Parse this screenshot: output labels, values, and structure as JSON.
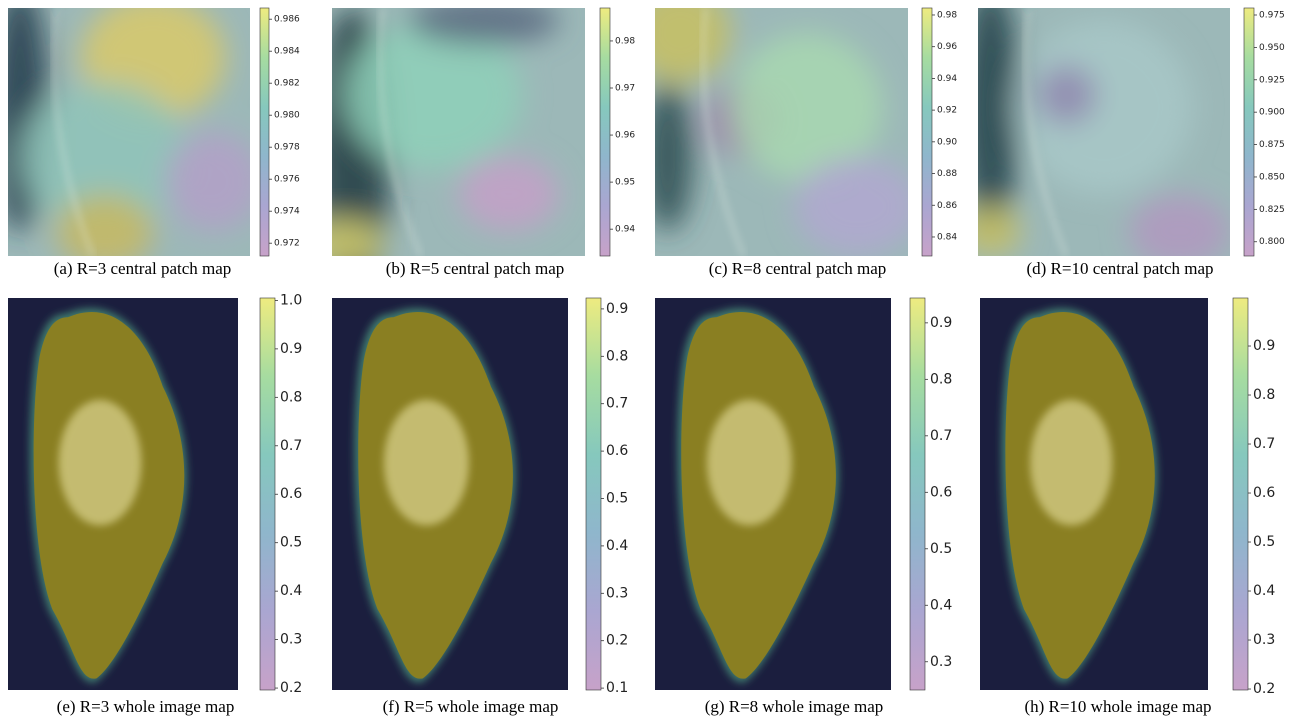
{
  "chart_data": [
    {
      "type": "heatmap",
      "caption": "(a) R=3 central patch map",
      "colormap": "viridis",
      "clim": [
        0.9712,
        0.9867
      ],
      "cticks": [
        0.972,
        0.974,
        0.976,
        0.978,
        {
          "value": 0.98,
          "label": "0.980"
        },
        0.982,
        0.984,
        0.986
      ]
    },
    {
      "type": "heatmap",
      "caption": "(b) R=5 central patch map",
      "colormap": "viridis",
      "clim": [
        0.9343,
        0.987
      ],
      "cticks": [
        0.94,
        0.95,
        0.96,
        0.97,
        0.98
      ]
    },
    {
      "type": "heatmap",
      "caption": "(c) R=8 central patch map",
      "colormap": "viridis",
      "clim": [
        0.828,
        0.9844
      ],
      "cticks": [
        0.84,
        0.86,
        0.88,
        {
          "value": 0.9,
          "label": "0.90"
        },
        0.92,
        0.94,
        0.96,
        0.98
      ]
    },
    {
      "type": "heatmap",
      "caption": "(d) R=10 central patch map",
      "colormap": "viridis",
      "clim": [
        0.789,
        0.9804
      ],
      "cticks": [
        {
          "value": 0.8,
          "label": "0.800"
        },
        0.825,
        {
          "value": 0.85,
          "label": "0.850"
        },
        0.875,
        {
          "value": 0.9,
          "label": "0.900"
        },
        0.925,
        {
          "value": 0.95,
          "label": "0.950"
        },
        0.975
      ]
    },
    {
      "type": "heatmap",
      "caption": "(e) R=3 whole image map",
      "colormap": "viridis",
      "clim": [
        0.196,
        1.005
      ],
      "cticks": [
        0.2,
        0.3,
        0.4,
        0.5,
        0.6,
        0.7,
        0.8,
        0.9,
        {
          "value": 1,
          "label": "1.0"
        }
      ]
    },
    {
      "type": "heatmap",
      "caption": "(f) R=5 whole image map",
      "colormap": "viridis",
      "clim": [
        0.096,
        0.923
      ],
      "cticks": [
        0.1,
        0.2,
        0.3,
        0.4,
        0.5,
        0.6,
        0.7,
        0.8,
        0.9
      ]
    },
    {
      "type": "heatmap",
      "caption": "(g) R=8 whole image map",
      "colormap": "viridis",
      "clim": [
        0.25,
        0.944
      ],
      "cticks": [
        0.3,
        0.4,
        0.5,
        0.6,
        0.7,
        0.8,
        0.9
      ]
    },
    {
      "type": "heatmap",
      "caption": "(h) R=10 whole image map",
      "colormap": "viridis",
      "clim": [
        0.198,
        0.998
      ],
      "cticks": [
        0.2,
        0.3,
        0.4,
        0.5,
        0.6,
        0.7,
        0.8,
        0.9
      ]
    }
  ]
}
